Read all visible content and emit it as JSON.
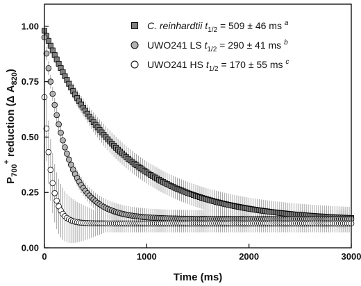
{
  "chart_data": {
    "type": "scatter",
    "title": "",
    "xlabel": "Time (ms)",
    "ylabel": "P700+ reduction (Δ A820)",
    "ylabel_parts": {
      "p": "P",
      "sub": "700",
      "sup": "+",
      "mid": " reduction (Δ A",
      "sub2": "820",
      "end": ")"
    },
    "xlim": [
      0,
      3000
    ],
    "ylim": [
      0,
      1.1
    ],
    "xticks": [
      0,
      1000,
      2000,
      3000
    ],
    "yticks": [
      0.0,
      0.25,
      0.5,
      0.75,
      1.0
    ],
    "ytick_labels": [
      "0.00",
      "0.25",
      "0.50",
      "0.75",
      "1.00"
    ],
    "xtick_labels": [
      "0",
      "1000",
      "2000",
      "3000"
    ],
    "legend_position": "top-right",
    "series": [
      {
        "name": "C. reinhardtii",
        "legend_name": "C. reinhardtii",
        "legend_stat": "t1/2 = 509 ± 46 ms",
        "legend_stat_parts": {
          "t": "t",
          "sub": "1/2",
          "rest": " = 509 ± 46 ms ",
          "sup": "a"
        },
        "marker": "square",
        "fill": "#7f7f7f",
        "t_half_ms": 509,
        "t_half_err_ms": 46,
        "y0": 0.98,
        "plateau": 0.12,
        "tau_ms": 735,
        "error_start": 0.02,
        "error_end": 0.05
      },
      {
        "name": "UWO241 LS",
        "legend_name": "UWO241 LS",
        "legend_stat": "t1/2 = 290 ± 41 ms",
        "legend_stat_parts": {
          "t": "t",
          "sub": "1/2",
          "rest": " = 290 ± 41 ms ",
          "sup": "b"
        },
        "marker": "circle",
        "fill": "#b3b3b3",
        "t_half_ms": 290,
        "t_half_err_ms": 41,
        "y0": 0.95,
        "plateau": 0.13,
        "tau_ms": 215,
        "error_start": 0.03,
        "error_end": 0.04
      },
      {
        "name": "UWO241 HS",
        "legend_name": "UWO241 HS",
        "legend_stat": "t1/2 = 170 ± 55 ms",
        "legend_stat_parts": {
          "t": "t",
          "sub": "1/2",
          "rest": " = 170 ± 55 ms ",
          "sup": "c"
        },
        "marker": "circle",
        "fill": "#ffffff",
        "t_half_ms": 170,
        "t_half_err_ms": 55,
        "y0": 0.68,
        "plateau": 0.11,
        "tau_ms": 70,
        "error_start": 0.15,
        "error_end": 0.04
      }
    ]
  }
}
